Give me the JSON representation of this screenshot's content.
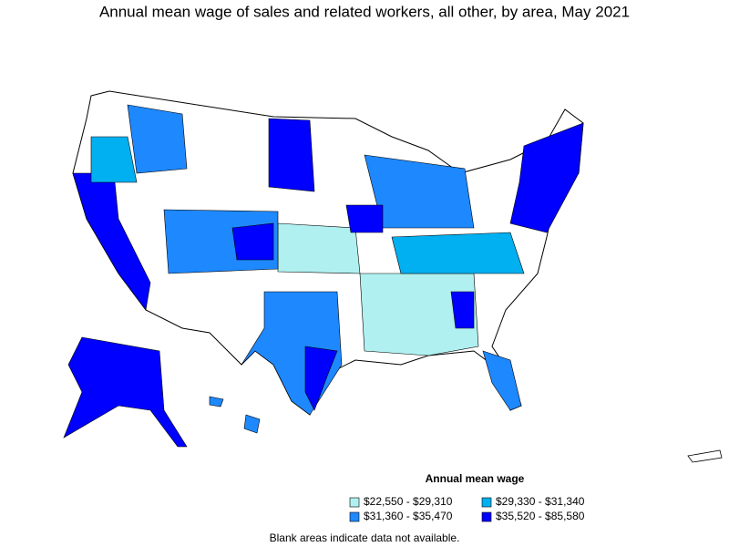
{
  "title": "Annual mean wage of sales and related workers, all other, by area, May 2021",
  "legend": {
    "title": "Annual mean wage",
    "items": [
      {
        "label": "$22,550 - $29,310",
        "color": "#b0f0f0"
      },
      {
        "label": "$29,330 - $31,340",
        "color": "#00b0f0"
      },
      {
        "label": "$31,360 - $35,470",
        "color": "#1e88ff"
      },
      {
        "label": "$35,520 - $85,580",
        "color": "#0000ff"
      }
    ]
  },
  "footnote": "Blank areas indicate data not available."
}
